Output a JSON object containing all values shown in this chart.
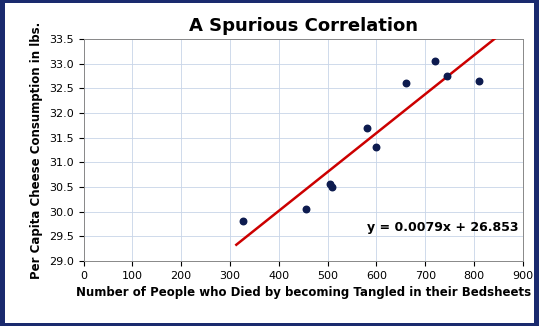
{
  "title": "A Spurious Correlation",
  "xlabel": "Number of People who Died by becoming Tangled in their Bedsheets",
  "ylabel": "Per Capita Cheese Consumption in lbs.",
  "scatter_x": [
    327,
    456,
    505,
    510,
    580,
    600,
    660,
    720,
    745,
    810
  ],
  "scatter_y": [
    29.8,
    30.05,
    30.55,
    30.5,
    31.7,
    31.3,
    32.6,
    33.05,
    32.75,
    32.65
  ],
  "scatter_color": "#0d1b4f",
  "line_color": "#cc0000",
  "line_equation": "y = 0.0079x + 26.853",
  "line_slope": 0.0079,
  "line_intercept": 26.853,
  "line_x_start": 313,
  "line_x_end": 855,
  "xlim": [
    0,
    900
  ],
  "ylim": [
    29,
    33.5
  ],
  "xticks": [
    0,
    100,
    200,
    300,
    400,
    500,
    600,
    700,
    800,
    900
  ],
  "yticks": [
    29,
    29.5,
    30,
    30.5,
    31,
    31.5,
    32,
    32.5,
    33,
    33.5
  ],
  "title_fontsize": 13,
  "label_fontsize": 8.5,
  "tick_fontsize": 8,
  "equation_x": 580,
  "equation_y": 29.6,
  "plot_bg_color": "#ffffff",
  "fig_bg_color": "#ffffff",
  "border_color": "#1a2a6e",
  "grid_color": "#c8d4e8",
  "equation_fontsize": 9
}
